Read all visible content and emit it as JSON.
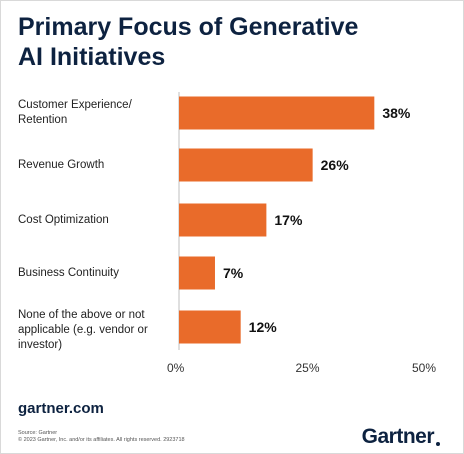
{
  "title_lines": [
    "Primary Focus of Generative",
    "AI Initiatives"
  ],
  "footer": {
    "website": "gartner.com",
    "source_line": "Source: Gartner",
    "copyright_line": "© 2023 Gartner, Inc. and/or its affiliates. All rights reserved. 2923718",
    "brand": "Gartner"
  },
  "colors": {
    "bar": "#e96b2a",
    "title": "#0d2240",
    "gridline": "#bfbfbf"
  },
  "chart_data": {
    "type": "bar",
    "orientation": "horizontal",
    "title": "Primary Focus of Generative AI Initiatives",
    "categories": [
      "Customer Experience/ Retention",
      "Revenue Growth",
      "Cost Optimization",
      "Business Continuity",
      "None of the above or not applicable (e.g. vendor or investor)"
    ],
    "category_lines": [
      [
        "Customer Experience/",
        "Retention"
      ],
      [
        "Revenue Growth"
      ],
      [
        "Cost Optimization"
      ],
      [
        "Business Continuity"
      ],
      [
        "None of the above or not",
        "applicable (e.g. vendor or",
        "investor)"
      ]
    ],
    "values": [
      38,
      26,
      17,
      7,
      12
    ],
    "value_labels": [
      "38%",
      "26%",
      "17%",
      "7%",
      "12%"
    ],
    "xlim": [
      0,
      50
    ],
    "x_ticks": [
      0,
      25,
      50
    ],
    "x_tick_labels": [
      "0%",
      "25%",
      "50%"
    ],
    "xlabel": "",
    "ylabel": "",
    "grid": false,
    "legend": "none"
  }
}
